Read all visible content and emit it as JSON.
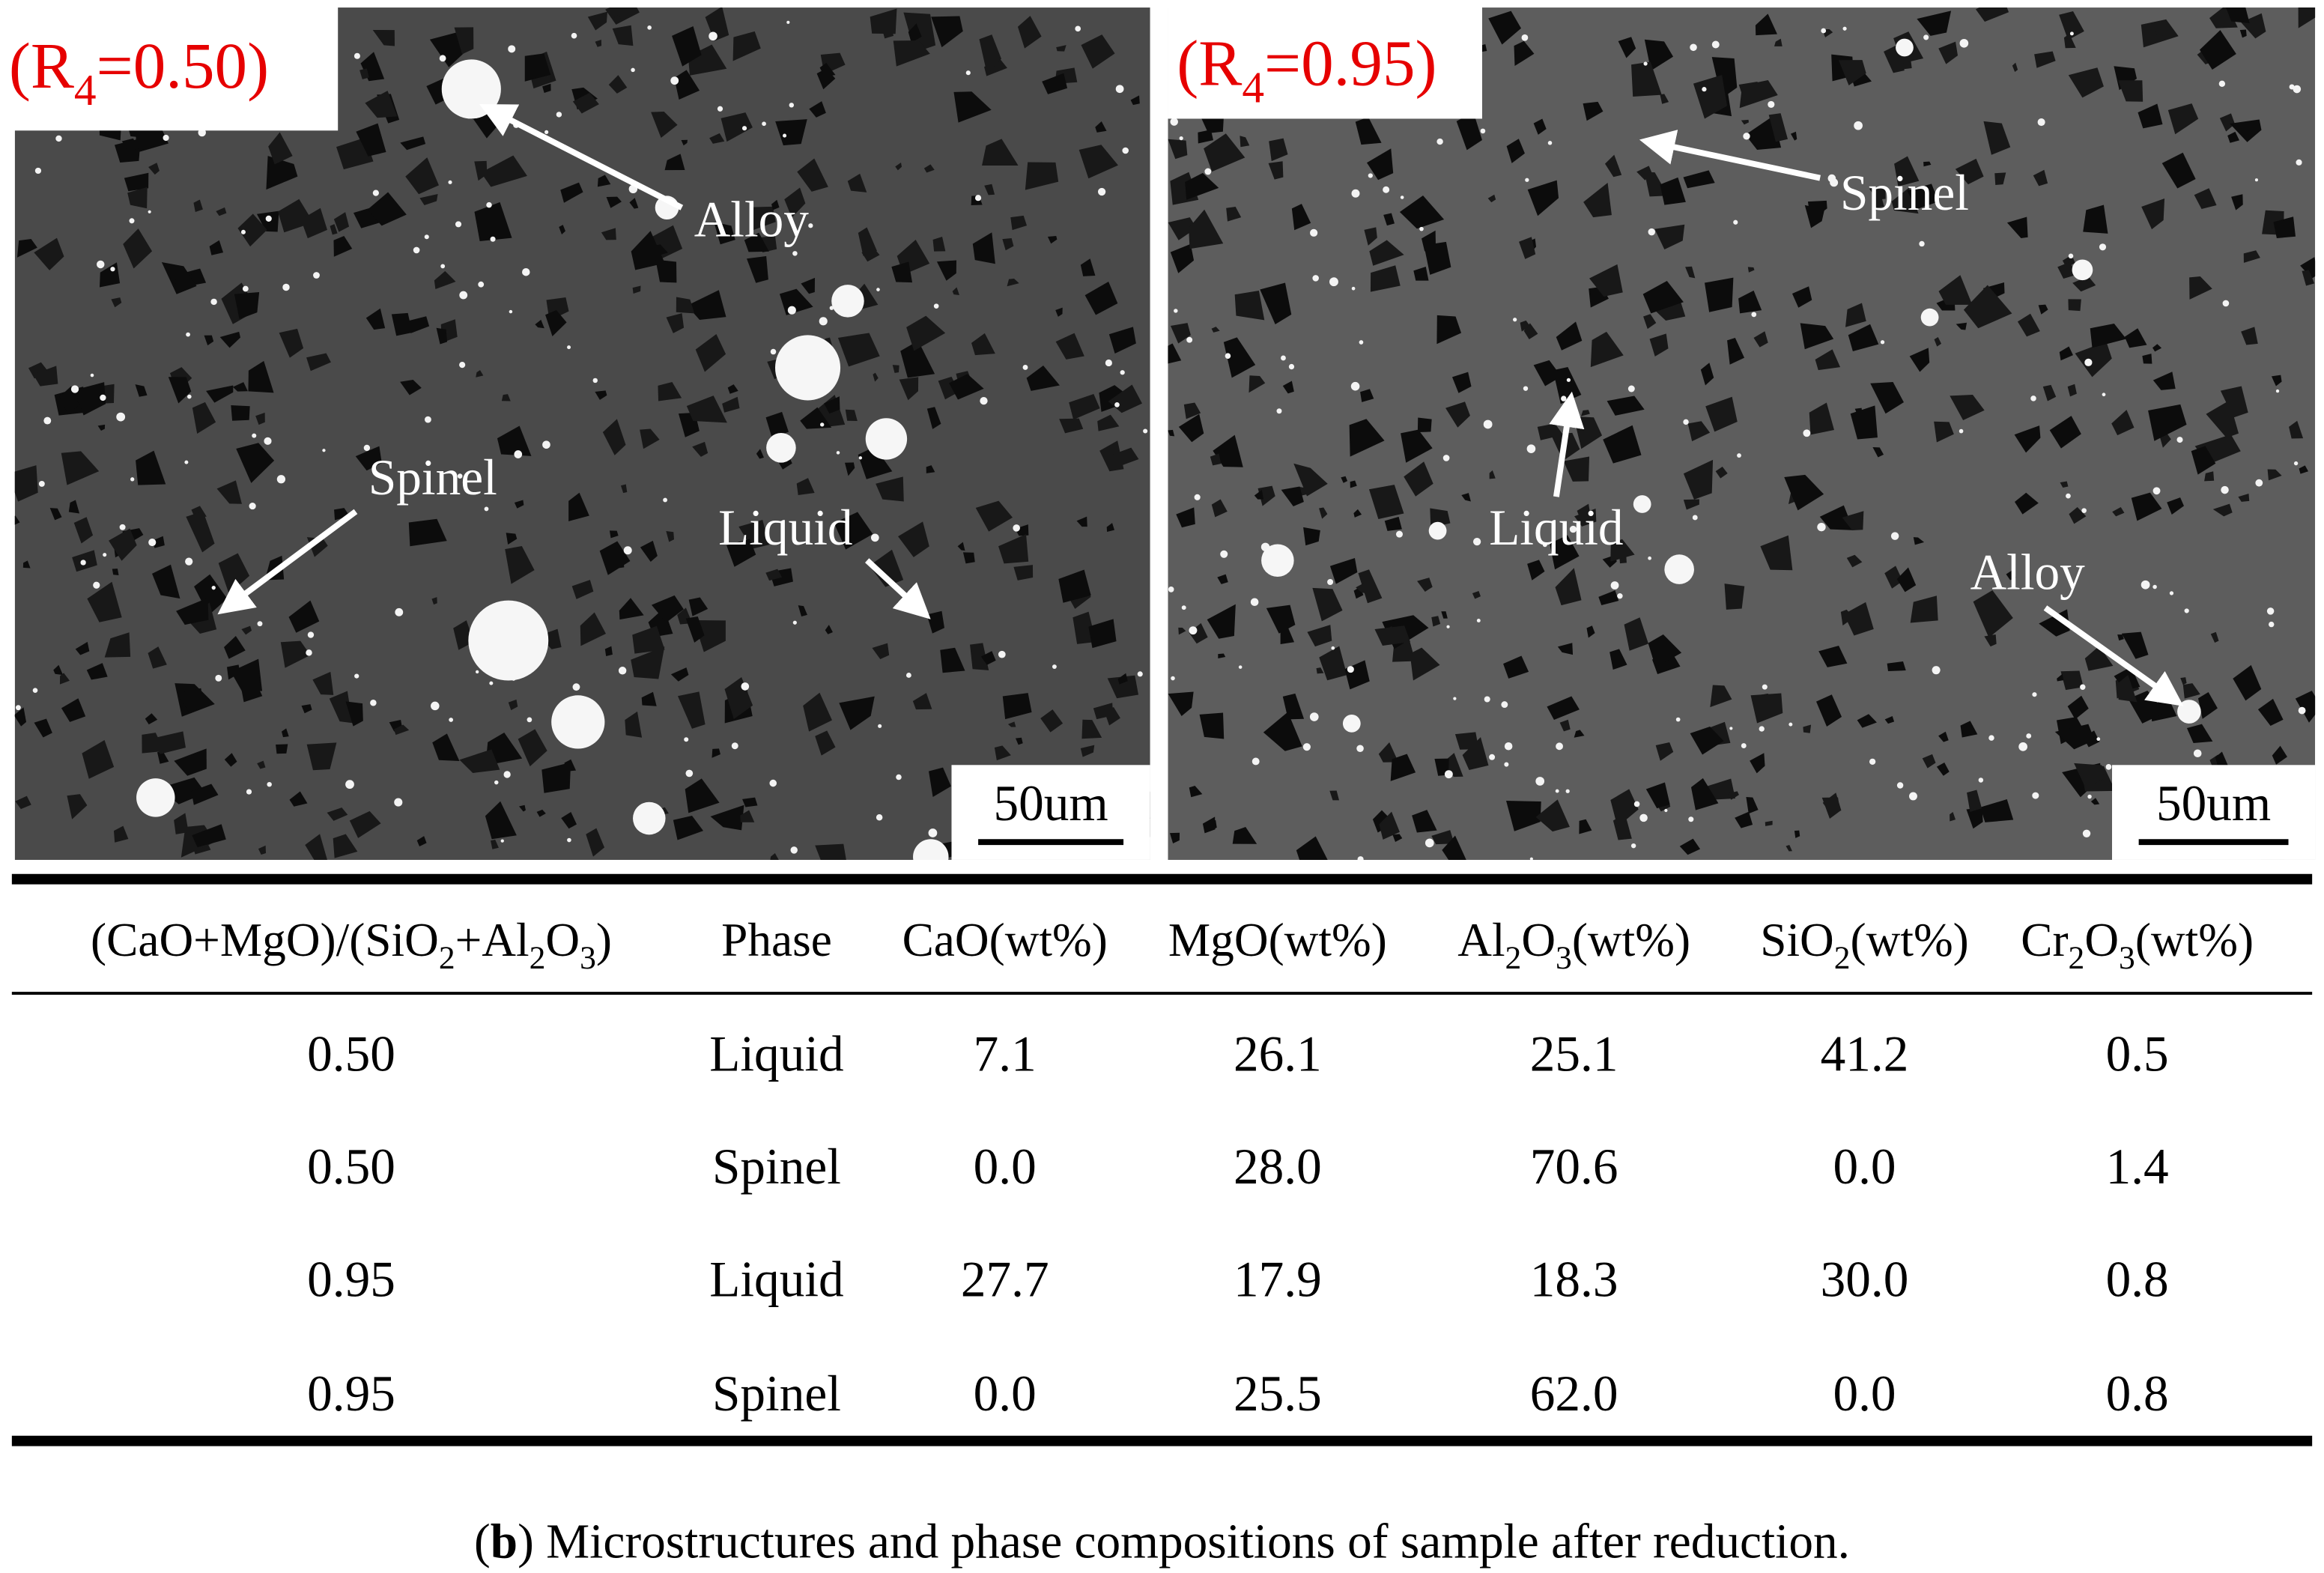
{
  "panels": [
    {
      "label": [
        "(R",
        "4",
        "=0.50)"
      ],
      "annotations": [
        "Alloy",
        "Spinel",
        "Liquid"
      ],
      "scale_bar": "50um"
    },
    {
      "label": [
        "(R",
        "4",
        "=0.95)"
      ],
      "annotations": [
        "Spinel",
        "Liquid",
        "Alloy"
      ],
      "scale_bar": "50um"
    }
  ],
  "table": {
    "header": [
      [
        "(CaO+MgO)/(SiO",
        "2",
        "+Al",
        "2",
        "O",
        "3",
        ")"
      ],
      [
        "Phase"
      ],
      [
        "CaO(wt%)"
      ],
      [
        "MgO(wt%)"
      ],
      [
        "Al",
        "2",
        "O",
        "3",
        "(wt%)"
      ],
      [
        "SiO",
        "2",
        "(wt%)"
      ],
      [
        "Cr",
        "2",
        "O",
        "3",
        "(wt%)"
      ]
    ],
    "rows": [
      [
        "0.50",
        "Liquid",
        "7.1",
        "26.1",
        "25.1",
        "41.2",
        "0.5"
      ],
      [
        "0.50",
        "Spinel",
        "0.0",
        "28.0",
        "70.6",
        "0.0",
        "1.4"
      ],
      [
        "0.95",
        "Liquid",
        "27.7",
        "17.9",
        "18.3",
        "30.0",
        "0.8"
      ],
      [
        "0.95",
        "Spinel",
        "0.0",
        "25.5",
        "62.0",
        "0.0",
        "0.8"
      ]
    ]
  },
  "caption": [
    "(",
    "b",
    ") Microstructures and phase compositions of sample after reduction."
  ]
}
